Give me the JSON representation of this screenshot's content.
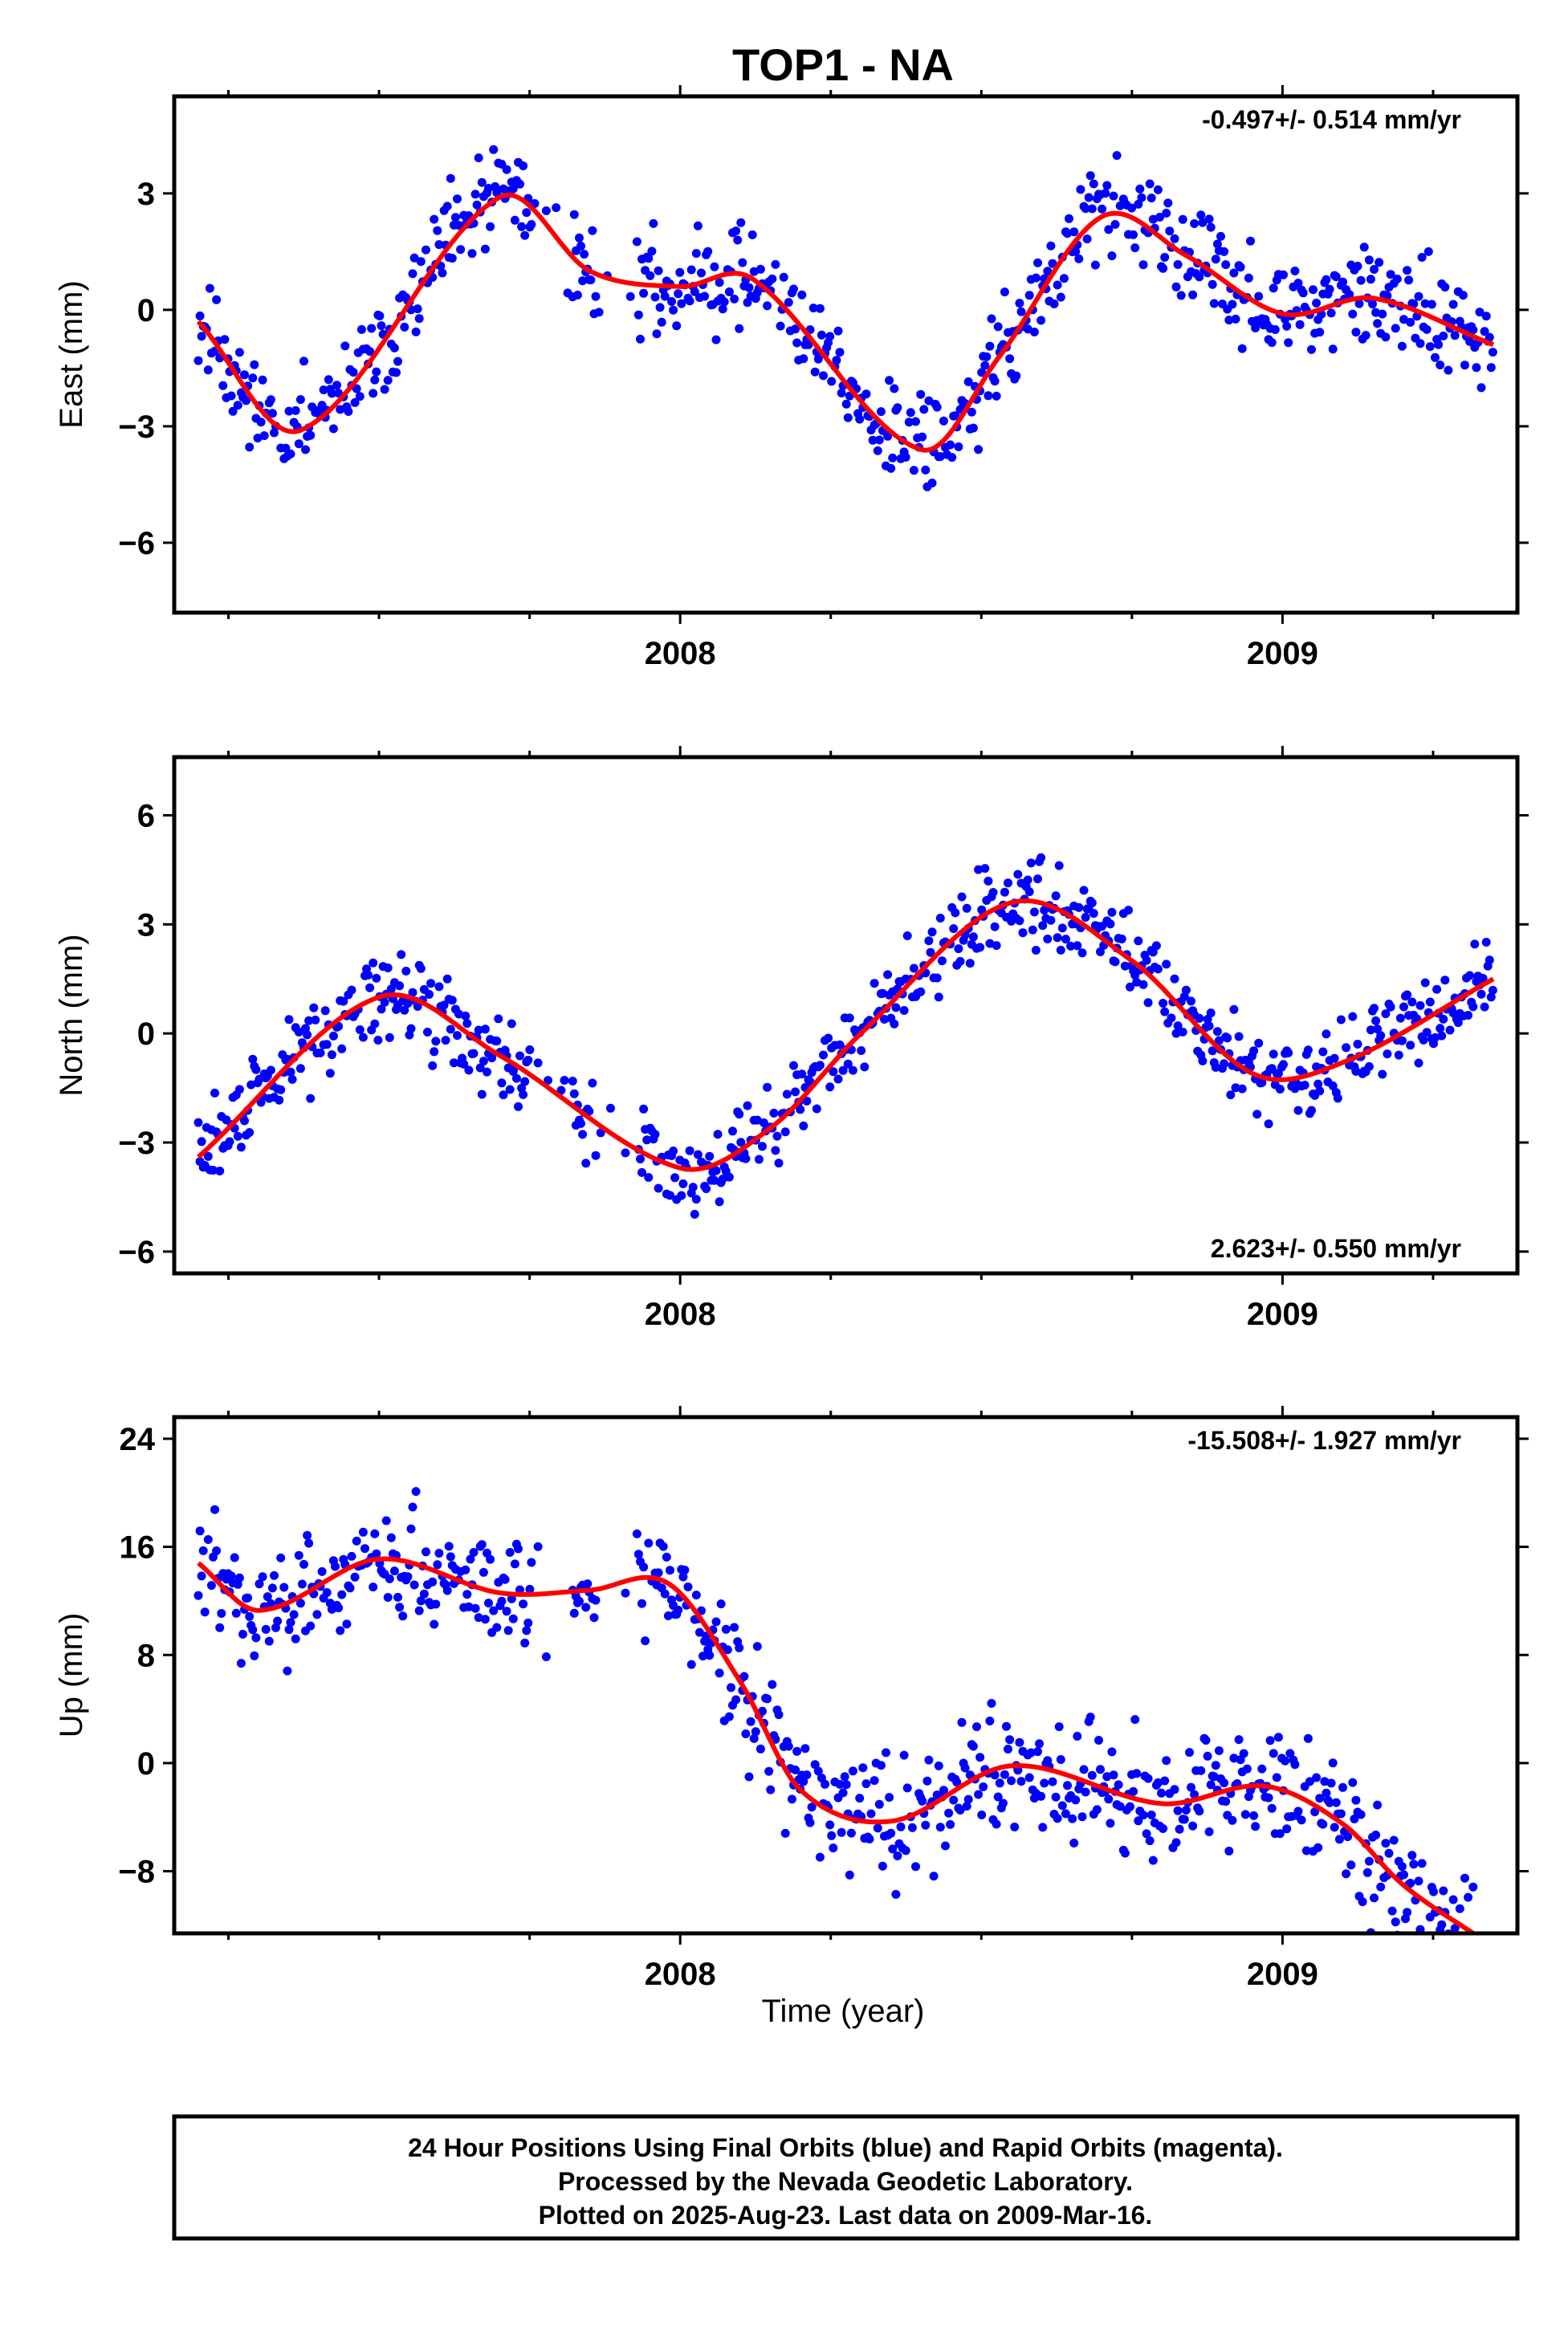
{
  "title": "TOP1 - NA",
  "colors": {
    "final_orbits": "#0000ff",
    "rapid_orbits": "#ff00ff",
    "model": "#ff0000",
    "frame": "#000000"
  },
  "xaxis": {
    "label": "Time (year)"
  },
  "chart_data": [
    {
      "type": "scatter",
      "name": "east",
      "ylabel": "East (mm)",
      "rate_text": "-0.497+/- 0.514 mm/yr",
      "rate_position": "top-right",
      "xlim": [
        2007.16,
        2009.39
      ],
      "ylim": [
        -7.8,
        5.5
      ],
      "yticks": [
        3,
        0,
        -3,
        -6
      ],
      "ytick_labels": [
        "3",
        "0",
        "−3",
        "−6"
      ],
      "xticks": [
        2008,
        2009
      ],
      "xtick_labels": [
        "2008",
        "2009"
      ],
      "minor_xticks": [
        2007.25,
        2007.5,
        2007.75,
        2008.25,
        2008.5,
        2008.75,
        2009.25
      ],
      "fit": {
        "x": [
          2007.2,
          2007.37,
          2007.7,
          2007.85,
          2008.0,
          2008.12,
          2008.4,
          2008.53,
          2008.7,
          2008.84,
          2009.0,
          2009.15,
          2009.35
        ],
        "y": [
          -0.3,
          -3.1,
          2.9,
          1.0,
          0.6,
          0.8,
          -3.6,
          -1.2,
          2.4,
          1.4,
          -0.1,
          0.3,
          -0.9
        ]
      },
      "noise": 1.1
    },
    {
      "type": "scatter",
      "name": "north",
      "ylabel": "North (mm)",
      "rate_text": "2.623+/- 0.550 mm/yr",
      "rate_position": "bottom-right",
      "xlim": [
        2007.16,
        2009.39
      ],
      "ylim": [
        -6.6,
        7.6
      ],
      "yticks": [
        6,
        3,
        0,
        -3,
        -6
      ],
      "ytick_labels": [
        "6",
        "3",
        "0",
        "−3",
        "−6"
      ],
      "xticks": [
        2008,
        2009
      ],
      "xtick_labels": [
        "2008",
        "2009"
      ],
      "minor_xticks": [
        2007.25,
        2007.5,
        2007.75,
        2008.25,
        2008.5,
        2008.75,
        2009.25
      ],
      "fit": {
        "x": [
          2007.2,
          2007.5,
          2007.7,
          2008.0,
          2008.15,
          2008.3,
          2008.55,
          2008.75,
          2008.95,
          2009.1,
          2009.35
        ],
        "y": [
          -3.4,
          1.0,
          -0.6,
          -3.7,
          -2.6,
          0.0,
          3.6,
          2.0,
          -1.1,
          -0.8,
          1.5
        ]
      },
      "noise": 1.0
    },
    {
      "type": "scatter",
      "name": "up",
      "ylabel": "Up (mm)",
      "rate_text": "-15.508+/- 1.927 mm/yr",
      "rate_position": "top-right",
      "xlim": [
        2007.16,
        2009.39
      ],
      "ylim": [
        -12.6,
        25.6
      ],
      "yticks": [
        24,
        16,
        8,
        0,
        -8
      ],
      "ytick_labels": [
        "24",
        "16",
        "8",
        "0",
        "−8"
      ],
      "xticks": [
        2008,
        2009
      ],
      "xtick_labels": [
        "2008",
        "2009"
      ],
      "minor_xticks": [
        2007.25,
        2007.5,
        2007.75,
        2008.25,
        2008.5,
        2008.75,
        2009.25
      ],
      "fit": {
        "x": [
          2007.2,
          2007.3,
          2007.5,
          2007.7,
          2007.85,
          2007.98,
          2008.1,
          2008.2,
          2008.35,
          2008.55,
          2008.8,
          2008.97,
          2009.1,
          2009.2,
          2009.33
        ],
        "y": [
          14.8,
          11.3,
          15.1,
          12.6,
          12.8,
          13.3,
          6.0,
          -2.0,
          -4.3,
          -0.2,
          -3.0,
          -1.7,
          -4.5,
          -9.0,
          -13.0
        ]
      },
      "noise": 3.8
    }
  ],
  "footer": {
    "line1": "24 Hour Positions Using Final Orbits (blue) and Rapid Orbits (magenta).",
    "line2": "Processed by the Nevada Geodetic Laboratory.",
    "line3": "Plotted on 2025-Aug-23. Last data on 2009-Mar-16."
  }
}
